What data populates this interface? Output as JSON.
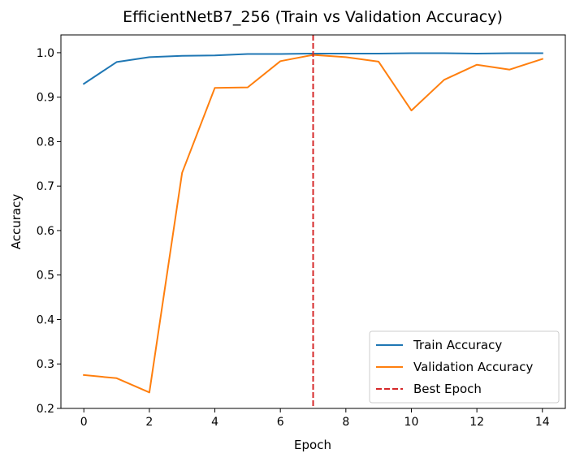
{
  "chart_data": {
    "type": "line",
    "title": "EfficientNetB7_256 (Train vs Validation Accuracy)",
    "xlabel": "Epoch",
    "ylabel": "Accuracy",
    "x": [
      0,
      1,
      2,
      3,
      4,
      5,
      6,
      7,
      8,
      9,
      10,
      11,
      12,
      13,
      14
    ],
    "xlim": [
      -0.7,
      14.7
    ],
    "ylim": [
      0.2,
      1.04
    ],
    "xticks": [
      0,
      2,
      4,
      6,
      8,
      10,
      12,
      14
    ],
    "yticks": [
      0.2,
      0.3,
      0.4,
      0.5,
      0.6,
      0.7,
      0.8,
      0.9,
      1.0
    ],
    "xtick_labels": [
      "0",
      "2",
      "4",
      "6",
      "8",
      "10",
      "12",
      "14"
    ],
    "ytick_labels": [
      "0.2",
      "0.3",
      "0.4",
      "0.5",
      "0.6",
      "0.7",
      "0.8",
      "0.9",
      "1.0"
    ],
    "series": [
      {
        "name": "Train Accuracy",
        "color": "#1f77b4",
        "values": [
          0.93,
          0.979,
          0.99,
          0.993,
          0.994,
          0.997,
          0.997,
          0.998,
          0.998,
          0.998,
          0.999,
          0.999,
          0.998,
          0.999,
          0.999
        ]
      },
      {
        "name": "Validation Accuracy",
        "color": "#ff7f0e",
        "values": [
          0.275,
          0.268,
          0.236,
          0.73,
          0.921,
          0.922,
          0.981,
          0.995,
          0.99,
          0.98,
          0.87,
          0.939,
          0.973,
          0.962,
          0.986
        ]
      }
    ],
    "reference_lines": [
      {
        "name": "Best Epoch",
        "orientation": "vertical",
        "x": 7,
        "color": "#d62728",
        "style": "dashed"
      }
    ],
    "legend": {
      "position": "lower-right",
      "entries": [
        "Train Accuracy",
        "Validation Accuracy",
        "Best Epoch"
      ]
    },
    "grid": false
  }
}
